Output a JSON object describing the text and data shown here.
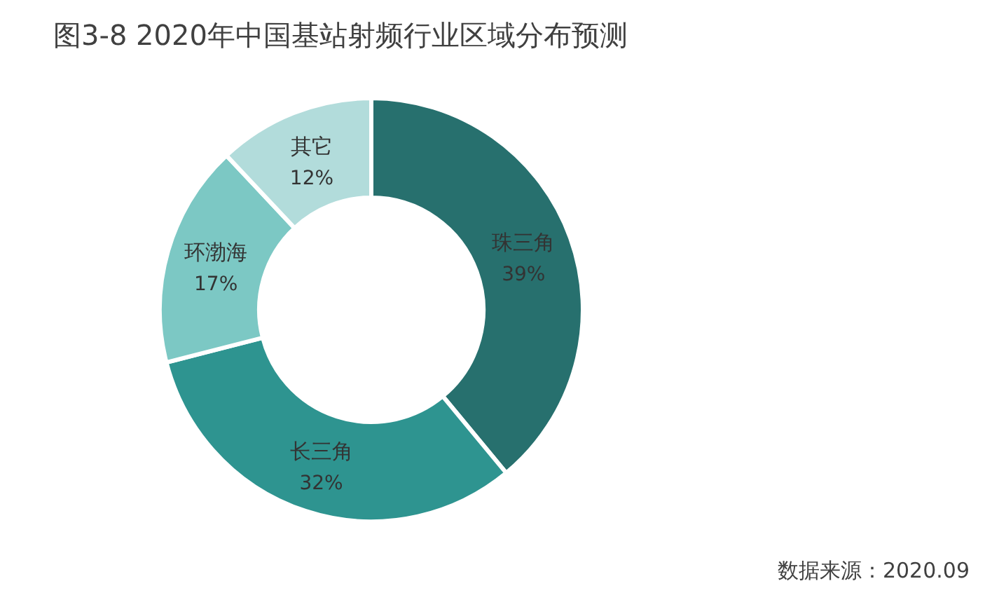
{
  "chart_data": {
    "type": "donut",
    "title": "图3-8  2020年中国基站射频行业区域分布预测",
    "categories": [
      "珠三角",
      "长三角",
      "环渤海",
      "其它"
    ],
    "values": [
      39,
      32,
      17,
      12
    ],
    "value_labels": [
      "39%",
      "32%",
      "17%",
      "12%"
    ],
    "colors": [
      "#27706e",
      "#2e9490",
      "#7cc8c4",
      "#b2dcdb"
    ],
    "annotations": [
      "数据来源：2020.09"
    ]
  }
}
